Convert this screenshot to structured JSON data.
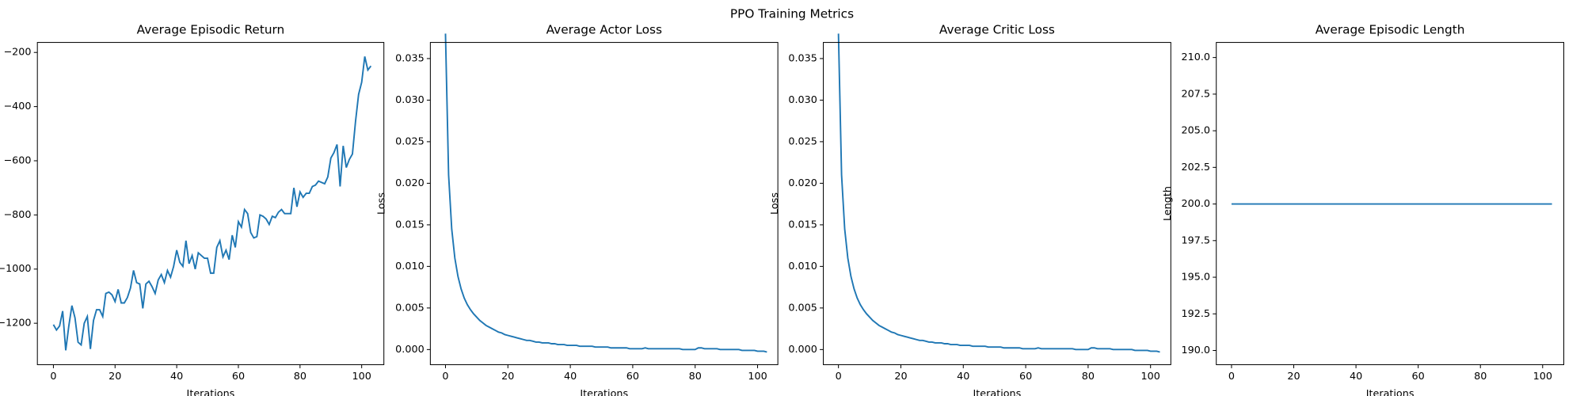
{
  "title": "PPO Training Metrics",
  "chart_data": [
    {
      "type": "line",
      "title": "Average Episodic Return",
      "xlabel": "Iterations",
      "color": "#1f77b4",
      "x": [
        0,
        1,
        2,
        3,
        4,
        5,
        6,
        7,
        8,
        9,
        10,
        11,
        12,
        13,
        14,
        15,
        16,
        17,
        18,
        19,
        20,
        21,
        22,
        23,
        24,
        25,
        26,
        27,
        28,
        29,
        30,
        31,
        32,
        33,
        34,
        35,
        36,
        37,
        38,
        39,
        40,
        41,
        42,
        43,
        44,
        45,
        46,
        47,
        48,
        49,
        50,
        51,
        52,
        53,
        54,
        55,
        56,
        57,
        58,
        59,
        60,
        61,
        62,
        63,
        64,
        65,
        66,
        67,
        68,
        69,
        70,
        71,
        72,
        73,
        74,
        75,
        76,
        77,
        78,
        79,
        80,
        81,
        82,
        83,
        84,
        85,
        86,
        87,
        88,
        89,
        90,
        91,
        92,
        93,
        94,
        95,
        96,
        97,
        98,
        99,
        100,
        101,
        102,
        103
      ],
      "values": [
        -1205,
        -1225,
        -1210,
        -1155,
        -1300,
        -1210,
        -1135,
        -1180,
        -1270,
        -1280,
        -1200,
        -1175,
        -1295,
        -1190,
        -1150,
        -1150,
        -1175,
        -1090,
        -1085,
        -1095,
        -1120,
        -1075,
        -1125,
        -1125,
        -1105,
        -1070,
        -1005,
        -1050,
        -1055,
        -1145,
        -1055,
        -1045,
        -1065,
        -1090,
        -1040,
        -1020,
        -1050,
        -1005,
        -1030,
        -990,
        -930,
        -975,
        -990,
        -895,
        -980,
        -950,
        -1000,
        -940,
        -950,
        -960,
        -960,
        -1015,
        -1015,
        -920,
        -895,
        -955,
        -930,
        -965,
        -875,
        -920,
        -825,
        -845,
        -780,
        -795,
        -865,
        -885,
        -880,
        -800,
        -805,
        -815,
        -835,
        -805,
        -810,
        -790,
        -780,
        -795,
        -795,
        -795,
        -700,
        -770,
        -715,
        -735,
        -720,
        -720,
        -695,
        -690,
        -675,
        -680,
        -685,
        -660,
        -590,
        -570,
        -540,
        -695,
        -545,
        -625,
        -595,
        -575,
        -455,
        -355,
        -310,
        -215,
        -265,
        -250
      ],
      "xlim": [
        -5.2,
        107.2
      ],
      "ylim": [
        -1353,
        -163
      ],
      "xticks": [
        0,
        20,
        40,
        60,
        80,
        100
      ],
      "yticks": [
        {
          "value": -1200,
          "label": "−1200"
        },
        {
          "value": -1000,
          "label": "−1000"
        },
        {
          "value": -800,
          "label": "−800"
        },
        {
          "value": -600,
          "label": "−600"
        },
        {
          "value": -400,
          "label": "−400"
        },
        {
          "value": -200,
          "label": "−200"
        }
      ]
    },
    {
      "type": "line",
      "title": "Average Actor Loss",
      "xlabel": "Iterations",
      "ylabel": "Loss",
      "color": "#1f77b4",
      "x": [
        0,
        1,
        2,
        3,
        4,
        5,
        6,
        7,
        8,
        9,
        10,
        11,
        12,
        13,
        14,
        15,
        16,
        17,
        18,
        19,
        20,
        21,
        22,
        23,
        24,
        25,
        26,
        27,
        28,
        29,
        30,
        31,
        32,
        33,
        34,
        35,
        36,
        37,
        38,
        39,
        40,
        41,
        42,
        43,
        44,
        45,
        46,
        47,
        48,
        49,
        50,
        51,
        52,
        53,
        54,
        55,
        56,
        57,
        58,
        59,
        60,
        61,
        62,
        63,
        64,
        65,
        66,
        67,
        68,
        69,
        70,
        71,
        72,
        73,
        74,
        75,
        76,
        77,
        78,
        79,
        80,
        81,
        82,
        83,
        84,
        85,
        86,
        87,
        88,
        89,
        90,
        91,
        92,
        93,
        94,
        95,
        96,
        97,
        98,
        99,
        100,
        101,
        102,
        103
      ],
      "values": [
        0.038,
        0.021,
        0.0145,
        0.011,
        0.0088,
        0.0073,
        0.0062,
        0.0054,
        0.0048,
        0.0043,
        0.0039,
        0.0035,
        0.0032,
        0.0029,
        0.0027,
        0.0025,
        0.0023,
        0.0021,
        0.002,
        0.0018,
        0.0017,
        0.0016,
        0.0015,
        0.0014,
        0.0013,
        0.0012,
        0.0011,
        0.0011,
        0.001,
        0.0009,
        0.0009,
        0.0008,
        0.0008,
        0.0008,
        0.0007,
        0.0007,
        0.0006,
        0.0006,
        0.0006,
        0.0005,
        0.0005,
        0.0005,
        0.0005,
        0.0004,
        0.0004,
        0.0004,
        0.0004,
        0.0004,
        0.0003,
        0.0003,
        0.0003,
        0.0003,
        0.0003,
        0.0002,
        0.0002,
        0.0002,
        0.0002,
        0.0002,
        0.0002,
        0.0001,
        0.0001,
        0.0001,
        0.0001,
        0.0001,
        0.0002,
        0.0001,
        0.0001,
        0.0001,
        0.0001,
        0.0001,
        0.0001,
        0.0001,
        0.0001,
        0.0001,
        0.0001,
        0.0001,
        0,
        0,
        0,
        0,
        0,
        0.0002,
        0.0002,
        0.0001,
        0.0001,
        0.0001,
        0.0001,
        0.0001,
        0,
        0,
        0,
        0,
        0,
        0,
        0,
        -0.0001,
        -0.0001,
        -0.0001,
        -0.0001,
        -0.0001,
        -0.0002,
        -0.0002,
        -0.0002,
        -0.0003
      ],
      "xlim": [
        -4.85,
        106.5
      ],
      "ylim": [
        -0.00182,
        0.03694
      ],
      "xticks": [
        0,
        20,
        40,
        60,
        80,
        100
      ],
      "yticks": [
        {
          "value": 0,
          "label": "0.000"
        },
        {
          "value": 0.005,
          "label": "0.005"
        },
        {
          "value": 0.01,
          "label": "0.010"
        },
        {
          "value": 0.015,
          "label": "0.015"
        },
        {
          "value": 0.02,
          "label": "0.020"
        },
        {
          "value": 0.025,
          "label": "0.025"
        },
        {
          "value": 0.03,
          "label": "0.030"
        },
        {
          "value": 0.035,
          "label": "0.035"
        }
      ]
    },
    {
      "type": "line",
      "title": "Average Critic Loss",
      "xlabel": "Iterations",
      "ylabel": "Loss",
      "color": "#1f77b4",
      "x": [
        0,
        1,
        2,
        3,
        4,
        5,
        6,
        7,
        8,
        9,
        10,
        11,
        12,
        13,
        14,
        15,
        16,
        17,
        18,
        19,
        20,
        21,
        22,
        23,
        24,
        25,
        26,
        27,
        28,
        29,
        30,
        31,
        32,
        33,
        34,
        35,
        36,
        37,
        38,
        39,
        40,
        41,
        42,
        43,
        44,
        45,
        46,
        47,
        48,
        49,
        50,
        51,
        52,
        53,
        54,
        55,
        56,
        57,
        58,
        59,
        60,
        61,
        62,
        63,
        64,
        65,
        66,
        67,
        68,
        69,
        70,
        71,
        72,
        73,
        74,
        75,
        76,
        77,
        78,
        79,
        80,
        81,
        82,
        83,
        84,
        85,
        86,
        87,
        88,
        89,
        90,
        91,
        92,
        93,
        94,
        95,
        96,
        97,
        98,
        99,
        100,
        101,
        102,
        103
      ],
      "values": [
        0.038,
        0.021,
        0.0145,
        0.011,
        0.0088,
        0.0073,
        0.0062,
        0.0054,
        0.0048,
        0.0043,
        0.0039,
        0.0035,
        0.0032,
        0.0029,
        0.0027,
        0.0025,
        0.0023,
        0.0021,
        0.002,
        0.0018,
        0.0017,
        0.0016,
        0.0015,
        0.0014,
        0.0013,
        0.0012,
        0.0011,
        0.0011,
        0.001,
        0.0009,
        0.0009,
        0.0008,
        0.0008,
        0.0008,
        0.0007,
        0.0007,
        0.0006,
        0.0006,
        0.0006,
        0.0005,
        0.0005,
        0.0005,
        0.0005,
        0.0004,
        0.0004,
        0.0004,
        0.0004,
        0.0004,
        0.0003,
        0.0003,
        0.0003,
        0.0003,
        0.0003,
        0.0002,
        0.0002,
        0.0002,
        0.0002,
        0.0002,
        0.0002,
        0.0001,
        0.0001,
        0.0001,
        0.0001,
        0.0001,
        0.0002,
        0.0001,
        0.0001,
        0.0001,
        0.0001,
        0.0001,
        0.0001,
        0.0001,
        0.0001,
        0.0001,
        0.0001,
        0.0001,
        0,
        0,
        0,
        0,
        0,
        0.0002,
        0.0002,
        0.0001,
        0.0001,
        0.0001,
        0.0001,
        0.0001,
        0,
        0,
        0,
        0,
        0,
        0,
        0,
        -0.0001,
        -0.0001,
        -0.0001,
        -0.0001,
        -0.0001,
        -0.0002,
        -0.0002,
        -0.0002,
        -0.0003
      ],
      "xlim": [
        -4.85,
        106.5
      ],
      "ylim": [
        -0.00182,
        0.03694
      ],
      "xticks": [
        0,
        20,
        40,
        60,
        80,
        100
      ],
      "yticks": [
        {
          "value": 0,
          "label": "0.000"
        },
        {
          "value": 0.005,
          "label": "0.005"
        },
        {
          "value": 0.01,
          "label": "0.010"
        },
        {
          "value": 0.015,
          "label": "0.015"
        },
        {
          "value": 0.02,
          "label": "0.020"
        },
        {
          "value": 0.025,
          "label": "0.025"
        },
        {
          "value": 0.03,
          "label": "0.030"
        },
        {
          "value": 0.035,
          "label": "0.035"
        }
      ]
    },
    {
      "type": "line",
      "title": "Average Episodic Length",
      "xlabel": "Iterations",
      "ylabel": "Length",
      "color": "#1f77b4",
      "x": [
        0,
        1,
        2,
        3,
        4,
        5,
        6,
        7,
        8,
        9,
        10,
        11,
        12,
        13,
        14,
        15,
        16,
        17,
        18,
        19,
        20,
        21,
        22,
        23,
        24,
        25,
        26,
        27,
        28,
        29,
        30,
        31,
        32,
        33,
        34,
        35,
        36,
        37,
        38,
        39,
        40,
        41,
        42,
        43,
        44,
        45,
        46,
        47,
        48,
        49,
        50,
        51,
        52,
        53,
        54,
        55,
        56,
        57,
        58,
        59,
        60,
        61,
        62,
        63,
        64,
        65,
        66,
        67,
        68,
        69,
        70,
        71,
        72,
        73,
        74,
        75,
        76,
        77,
        78,
        79,
        80,
        81,
        82,
        83,
        84,
        85,
        86,
        87,
        88,
        89,
        90,
        91,
        92,
        93,
        94,
        95,
        96,
        97,
        98,
        99,
        100,
        101,
        102,
        103
      ],
      "values": [
        200,
        200,
        200,
        200,
        200,
        200,
        200,
        200,
        200,
        200,
        200,
        200,
        200,
        200,
        200,
        200,
        200,
        200,
        200,
        200,
        200,
        200,
        200,
        200,
        200,
        200,
        200,
        200,
        200,
        200,
        200,
        200,
        200,
        200,
        200,
        200,
        200,
        200,
        200,
        200,
        200,
        200,
        200,
        200,
        200,
        200,
        200,
        200,
        200,
        200,
        200,
        200,
        200,
        200,
        200,
        200,
        200,
        200,
        200,
        200,
        200,
        200,
        200,
        200,
        200,
        200,
        200,
        200,
        200,
        200,
        200,
        200,
        200,
        200,
        200,
        200,
        200,
        200,
        200,
        200,
        200,
        200,
        200,
        200,
        200,
        200,
        200,
        200,
        200,
        200,
        200,
        200,
        200,
        200,
        200,
        200,
        200,
        200,
        200,
        200,
        200,
        200,
        200,
        200
      ],
      "xlim": [
        -4.9,
        106.8
      ],
      "ylim": [
        189.03,
        211.03
      ],
      "xticks": [
        0,
        20,
        40,
        60,
        80,
        100
      ],
      "yticks": [
        {
          "value": 190,
          "label": "190.0"
        },
        {
          "value": 192.5,
          "label": "192.5"
        },
        {
          "value": 195,
          "label": "195.0"
        },
        {
          "value": 197.5,
          "label": "197.5"
        },
        {
          "value": 200,
          "label": "200.0"
        },
        {
          "value": 202.5,
          "label": "202.5"
        },
        {
          "value": 205,
          "label": "205.0"
        },
        {
          "value": 207.5,
          "label": "207.5"
        },
        {
          "value": 210,
          "label": "210.0"
        }
      ]
    }
  ]
}
